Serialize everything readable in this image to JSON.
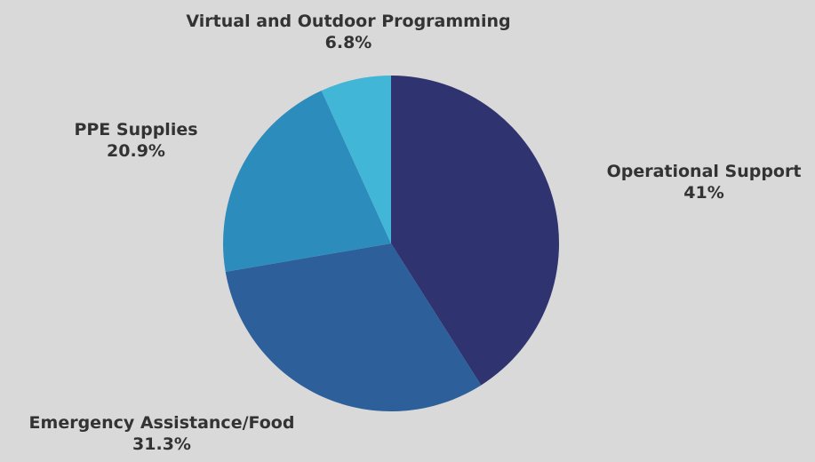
{
  "chart_data": {
    "type": "pie",
    "slices": [
      {
        "label": "Operational Support",
        "value": 41,
        "value_label": "41%",
        "color": "#2f3470"
      },
      {
        "label": "Emergency Assistance/Food",
        "value": 31.3,
        "value_label": "31.3%",
        "color": "#2d5f9a"
      },
      {
        "label": "PPE Supplies",
        "value": 20.9,
        "value_label": "20.9%",
        "color": "#2c8cbc"
      },
      {
        "label": "Virtual and Outdoor Programming",
        "value": 6.8,
        "value_label": "6.8%",
        "color": "#42b6d6"
      }
    ],
    "start": "12 o'clock",
    "direction": "clockwise",
    "legend": "none",
    "label_text_color": "#333333",
    "background_color": "#d9d9d9"
  }
}
